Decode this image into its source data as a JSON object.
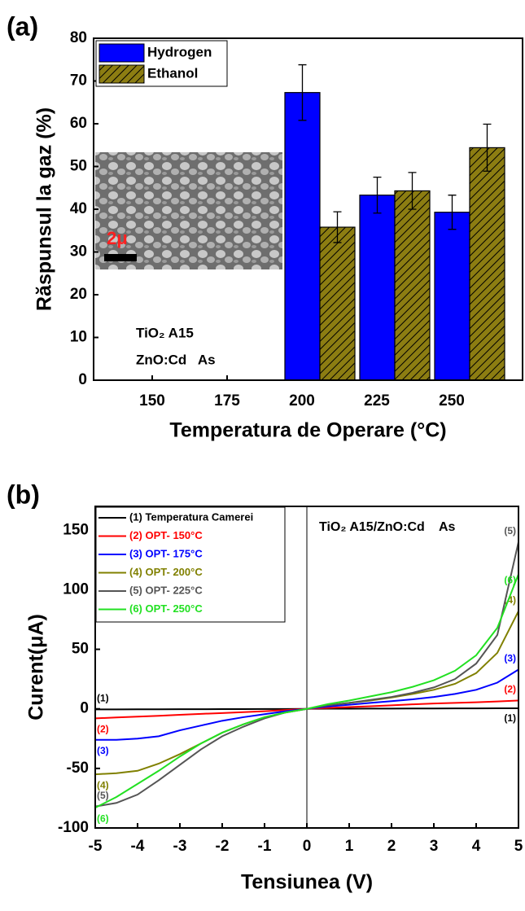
{
  "chart_data": [
    {
      "type": "bar",
      "label": "(a)",
      "y_label": "Răspunsul la gaz (%)",
      "x_label": "Temperatura de Operare (°C)",
      "categories": [
        "150",
        "175",
        "200",
        "225",
        "250"
      ],
      "series": [
        {
          "name": "Hydrogen",
          "color": "#0000ff",
          "values": [
            0,
            0,
            67.3,
            43.3,
            39.3
          ],
          "errors": [
            null,
            null,
            6.5,
            4.2,
            4.0
          ]
        },
        {
          "name": "Ethanol",
          "color": "#8c7d12",
          "hatch": true,
          "values": [
            0,
            0,
            35.8,
            44.3,
            54.4
          ],
          "errors": [
            null,
            null,
            3.6,
            4.3,
            5.5
          ]
        }
      ],
      "ylim": [
        0,
        80
      ],
      "yticks": [
        0,
        10,
        20,
        30,
        40,
        50,
        60,
        70,
        80
      ],
      "legend": "upper left",
      "inset_label": "2μ",
      "annotations": [
        "TiO₂ A15",
        "ZnO:Cd   As"
      ]
    },
    {
      "type": "line",
      "label": "(b)",
      "y_label": "Curent(μA)",
      "x_label": "Tensiunea (V)",
      "x": [
        -5,
        -4.5,
        -4,
        -3.5,
        -3,
        -2.5,
        -2,
        -1.5,
        -1,
        -0.5,
        0,
        0.5,
        1,
        1.5,
        2,
        2.5,
        3,
        3.5,
        4,
        4.5,
        5
      ],
      "series": [
        {
          "name": "(1) Temperatura Camerei",
          "tag": "(1)",
          "color": "#000000",
          "values": [
            -0.5,
            -0.5,
            -0.4,
            -0.4,
            -0.3,
            -0.3,
            -0.2,
            -0.2,
            -0.1,
            -0.1,
            0,
            0.1,
            0.1,
            0.2,
            0.2,
            0.3,
            0.3,
            0.4,
            0.4,
            0.5,
            0.5
          ]
        },
        {
          "name": "(2) OPT- 150°C",
          "tag": "(2)",
          "color": "#ff0000",
          "values": [
            -8,
            -7.2,
            -6.5,
            -5.8,
            -5,
            -4.2,
            -3.5,
            -2.8,
            -2,
            -1,
            0,
            0.8,
            1.5,
            2.2,
            3,
            3.8,
            4.5,
            5,
            5.5,
            6.2,
            7
          ]
        },
        {
          "name": "(3) OPT- 175°C",
          "tag": "(3)",
          "color": "#0000ff",
          "values": [
            -26,
            -26,
            -25,
            -23,
            -18,
            -14,
            -10,
            -7,
            -4.5,
            -2,
            0,
            2,
            3.5,
            5,
            6.5,
            8,
            10,
            12.5,
            16,
            22,
            33
          ]
        },
        {
          "name": "(4) OPT- 200°C",
          "tag": "(4)",
          "color": "#808000",
          "values": [
            -55,
            -54,
            -52,
            -46,
            -38,
            -29,
            -20,
            -13,
            -7,
            -3,
            0,
            3,
            5,
            7,
            9.5,
            12.5,
            16,
            21,
            30,
            47,
            82
          ]
        },
        {
          "name": "(5) OPT- 225°C",
          "tag": "(5)",
          "color": "#555555",
          "values": [
            -82,
            -79,
            -72,
            -60,
            -47,
            -34,
            -23,
            -15,
            -8,
            -3,
            0,
            3,
            5,
            7.5,
            10,
            13.5,
            18,
            25,
            38,
            62,
            140
          ]
        },
        {
          "name": "(6) OPT- 250°C",
          "tag": "(6)",
          "color": "#22e022",
          "values": [
            -83,
            -74,
            -63,
            -52,
            -40,
            -29,
            -20,
            -13,
            -7,
            -3,
            0,
            4,
            7,
            10.5,
            14,
            18.5,
            24,
            32,
            45,
            68,
            113
          ]
        }
      ],
      "xlim": [
        -5,
        5
      ],
      "xticks": [
        -5,
        -4,
        -3,
        -2,
        -1,
        0,
        1,
        2,
        3,
        4,
        5
      ],
      "ylim": [
        -100,
        170
      ],
      "yticks": [
        -100,
        -50,
        0,
        50,
        100,
        150
      ],
      "legend": "upper left",
      "annotations": [
        "TiO₂ A15/ZnO:Cd    As"
      ]
    }
  ]
}
